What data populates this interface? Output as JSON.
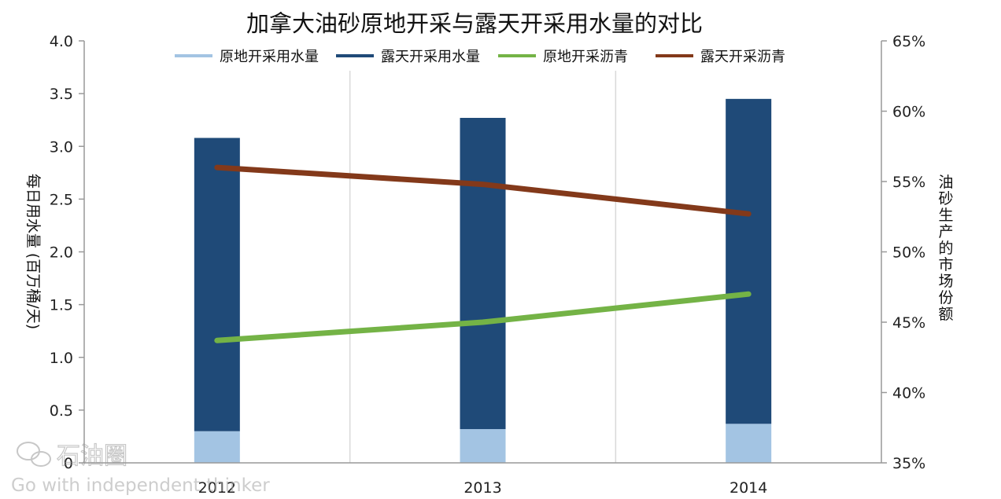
{
  "chart_data": {
    "type": "bar+line",
    "title": "加拿大油砂原地开采与露天开采用水量的对比",
    "categories": [
      "2012",
      "2013",
      "2014"
    ],
    "y_left": {
      "label": "每日用水量 (百万桶/天)",
      "lim": [
        0,
        4.0
      ],
      "ticks": [
        "0",
        "0.5",
        "1.0",
        "1.5",
        "2.0",
        "2.5",
        "3.0",
        "3.5",
        "4.0"
      ]
    },
    "y_right": {
      "label": "油砂生产的市场份额",
      "lim": [
        35,
        65
      ],
      "ticks": [
        "35%",
        "40%",
        "45%",
        "50%",
        "55%",
        "60%",
        "65%"
      ]
    },
    "bar_series": [
      {
        "name": "原地开采用水量",
        "color": "#a3c4e3",
        "values": [
          0.3,
          0.32,
          0.37
        ]
      },
      {
        "name": "露天开采用水量",
        "color": "#1f4a78",
        "values": [
          2.78,
          2.95,
          3.08
        ]
      }
    ],
    "line_series": [
      {
        "name": "原地开采沥青",
        "color": "#74b346",
        "axis": "right",
        "values": [
          43.7,
          45.0,
          47.0
        ]
      },
      {
        "name": "露天开采沥青",
        "color": "#83391a",
        "axis": "right",
        "values": [
          56.0,
          54.8,
          52.7
        ]
      }
    ],
    "legend_placement": "top",
    "grid": "vertical"
  },
  "watermark": {
    "brand": "石油圈",
    "slogan": "Go with independent thinker"
  }
}
